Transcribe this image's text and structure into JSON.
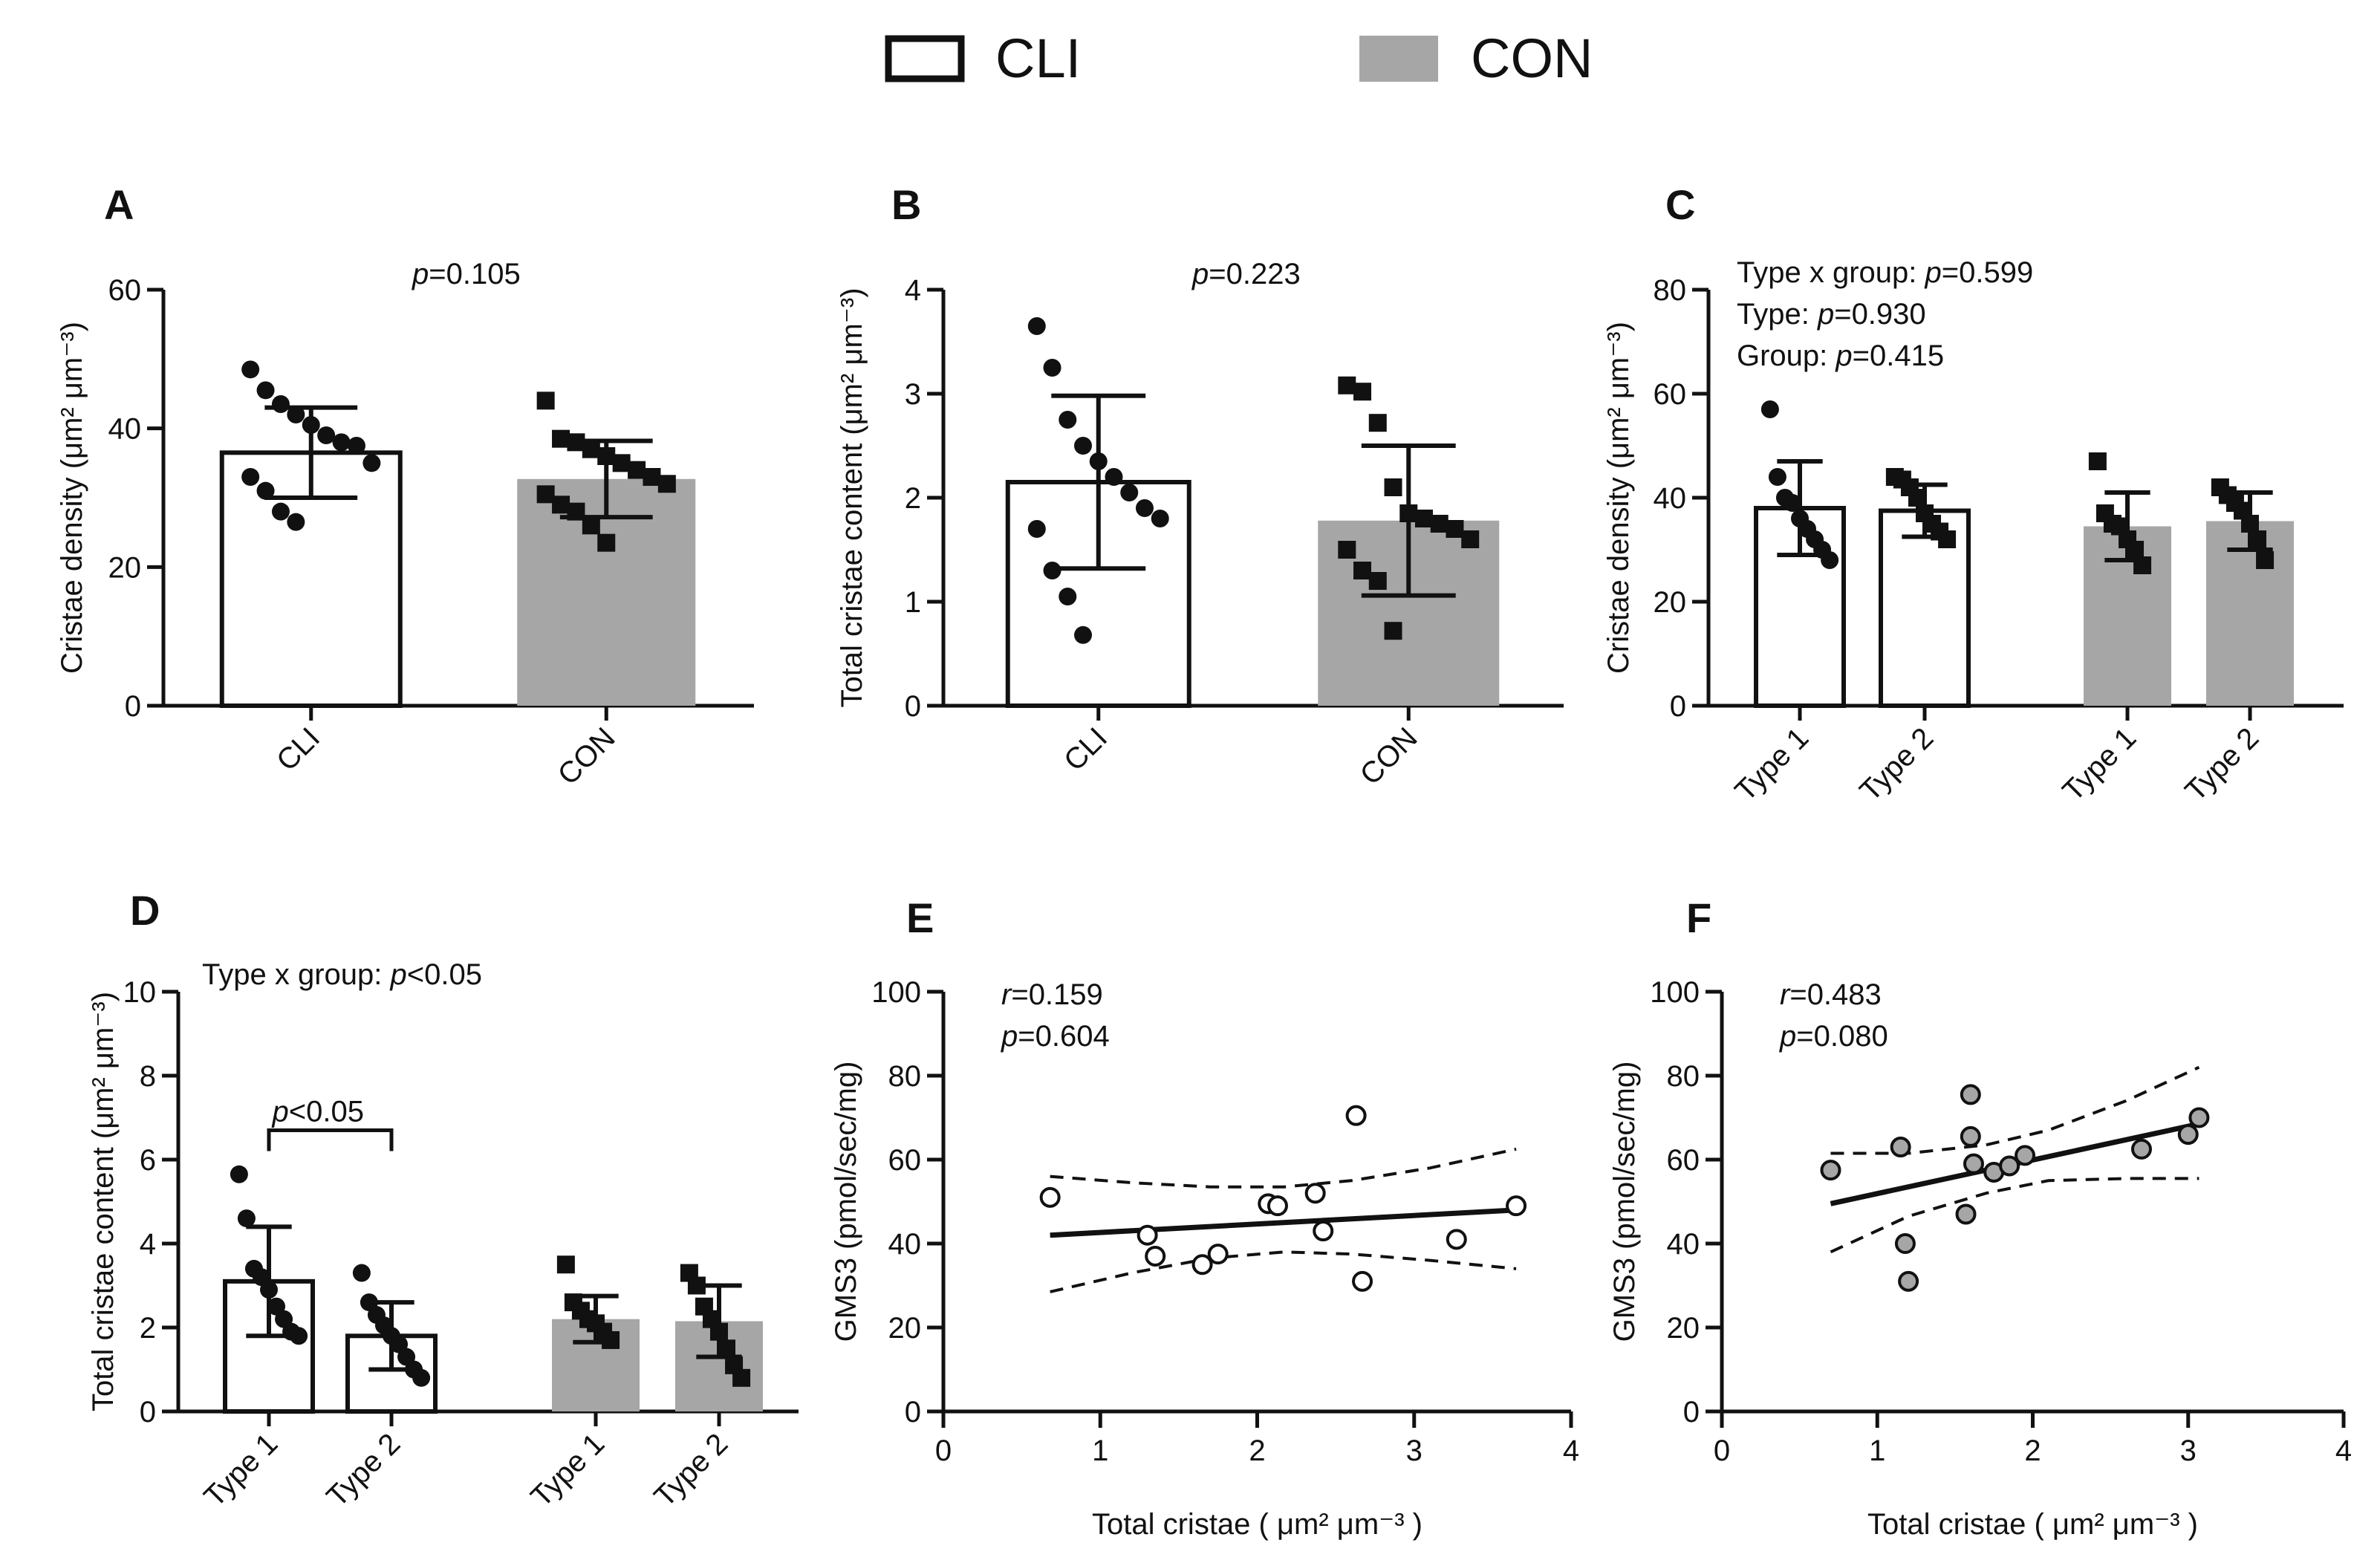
{
  "legend": {
    "items": [
      {
        "label": "CLI",
        "fill": "#ffffff"
      },
      {
        "label": "CON",
        "fill": "#a6a6a6"
      }
    ]
  },
  "colors": {
    "cli": "#ffffff",
    "con": "#a6a6a6",
    "ink": "#111111"
  },
  "chart_data": [
    {
      "id": "A",
      "title": "A",
      "type": "bar",
      "ylabel": "Cristae density (μm² μm⁻³)",
      "ylim": [
        0,
        60
      ],
      "yticks": [
        "0",
        "20",
        "40",
        "60"
      ],
      "annotation": [
        "p=0.105"
      ],
      "categories": [
        "CLI",
        "CON"
      ],
      "bars": [
        {
          "group": "CLI",
          "mean": 36.5,
          "sd": 6.5,
          "marker": "circle",
          "points": [
            48.5,
            45.5,
            43.5,
            42,
            40.5,
            39,
            38,
            37.5,
            35,
            33,
            31,
            28,
            26.5
          ]
        },
        {
          "group": "CON",
          "mean": 32.7,
          "sd": 5.5,
          "marker": "square",
          "points": [
            44,
            38.5,
            38,
            37,
            36,
            35,
            34,
            33,
            32,
            30.5,
            29,
            28,
            26,
            23.5
          ]
        }
      ]
    },
    {
      "id": "B",
      "title": "B",
      "type": "bar",
      "ylabel": "Total cristae content (μm² μm⁻³)",
      "ylim": [
        0,
        4
      ],
      "yticks": [
        "0",
        "1",
        "2",
        "3",
        "4"
      ],
      "annotation": [
        "p=0.223"
      ],
      "categories": [
        "CLI",
        "CON"
      ],
      "bars": [
        {
          "group": "CLI",
          "mean": 2.15,
          "sd": 0.83,
          "marker": "circle",
          "points": [
            3.65,
            3.25,
            2.75,
            2.5,
            2.35,
            2.2,
            2.05,
            1.9,
            1.8,
            1.7,
            1.3,
            1.05,
            0.68
          ]
        },
        {
          "group": "CON",
          "mean": 1.78,
          "sd": 0.72,
          "marker": "square",
          "points": [
            3.08,
            3.02,
            2.72,
            2.1,
            1.85,
            1.8,
            1.75,
            1.7,
            1.6,
            1.5,
            1.3,
            1.2,
            0.72
          ]
        }
      ]
    },
    {
      "id": "C",
      "title": "C",
      "type": "bar",
      "ylabel": "Cristae density (μm² μm⁻³)",
      "ylim": [
        0,
        80
      ],
      "yticks": [
        "0",
        "20",
        "40",
        "60",
        "80"
      ],
      "annotation": [
        "Type x group: p=0.599",
        "Type: p=0.930",
        "Group: p=0.415"
      ],
      "categories": [
        "Type 1",
        "Type 2",
        "Type 1",
        "Type 2"
      ],
      "bars": [
        {
          "group": "CLI",
          "mean": 38,
          "sd": 9,
          "marker": "circle",
          "points": [
            57,
            44,
            40,
            39,
            36,
            34,
            32,
            30,
            28
          ]
        },
        {
          "group": "CLI",
          "mean": 37.5,
          "sd": 5,
          "marker": "square",
          "points": [
            44,
            43.5,
            42,
            40,
            37,
            35,
            33.5,
            32
          ]
        },
        {
          "group": "CON",
          "mean": 34.5,
          "sd": 6.5,
          "marker": "square",
          "points": [
            47,
            37,
            35,
            34.5,
            32,
            30,
            27
          ]
        },
        {
          "group": "CON",
          "mean": 35.5,
          "sd": 5.5,
          "marker": "square",
          "points": [
            42,
            40.5,
            39,
            37.5,
            35,
            32,
            28
          ]
        }
      ]
    },
    {
      "id": "D",
      "title": "D",
      "type": "bar",
      "ylabel": "Total cristae content (μm² μm⁻³)",
      "ylim": [
        0,
        10
      ],
      "yticks": [
        "0",
        "2",
        "4",
        "6",
        "8",
        "10"
      ],
      "annotation": [
        "Type x group: p<0.05"
      ],
      "bracket": {
        "label": "p<0.05",
        "y": 6.7,
        "between": [
          0,
          1
        ]
      },
      "categories": [
        "Type 1",
        "Type 2",
        "Type 1",
        "Type 2"
      ],
      "bars": [
        {
          "group": "CLI",
          "mean": 3.1,
          "sd": 1.3,
          "marker": "circle",
          "points": [
            5.65,
            4.6,
            3.4,
            3.2,
            2.9,
            2.5,
            2.2,
            1.9,
            1.8
          ]
        },
        {
          "group": "CLI",
          "mean": 1.8,
          "sd": 0.8,
          "marker": "circle",
          "points": [
            3.3,
            2.6,
            2.3,
            2.05,
            1.8,
            1.6,
            1.3,
            1.0,
            0.8
          ]
        },
        {
          "group": "CON",
          "mean": 2.2,
          "sd": 0.55,
          "marker": "square",
          "points": [
            3.5,
            2.6,
            2.4,
            2.2,
            2.1,
            1.9,
            1.7
          ]
        },
        {
          "group": "CON",
          "mean": 2.15,
          "sd": 0.85,
          "marker": "square",
          "points": [
            3.3,
            3.0,
            2.5,
            2.2,
            1.9,
            1.5,
            1.1,
            0.8
          ]
        }
      ]
    },
    {
      "id": "E",
      "title": "E",
      "type": "scatter",
      "xlabel": "Total cristae ( μm² μm⁻³ )",
      "ylabel": "GMS3  (pmol/sec/mg)",
      "xlim": [
        0,
        4
      ],
      "ylim": [
        0,
        100
      ],
      "xticks": [
        "0",
        "1",
        "2",
        "3",
        "4"
      ],
      "yticks": [
        "0",
        "20",
        "40",
        "60",
        "80",
        "100"
      ],
      "annotation": [
        "r=0.159",
        "p=0.604"
      ],
      "marker_fill": "#ffffff",
      "points": [
        [
          0.68,
          51
        ],
        [
          1.3,
          42
        ],
        [
          1.35,
          37
        ],
        [
          1.65,
          35
        ],
        [
          1.75,
          37.5
        ],
        [
          2.07,
          49.5
        ],
        [
          2.13,
          49
        ],
        [
          2.37,
          52
        ],
        [
          2.42,
          43
        ],
        [
          2.63,
          70.5
        ],
        [
          2.67,
          31
        ],
        [
          3.27,
          41
        ],
        [
          3.65,
          49
        ]
      ],
      "fit": {
        "x": [
          0.68,
          3.65
        ],
        "y": [
          42,
          48
        ]
      },
      "ci_upper": {
        "x": [
          0.68,
          1.2,
          1.7,
          2.17,
          2.6,
          3.1,
          3.65
        ],
        "y": [
          56,
          54.5,
          53.5,
          53.5,
          55,
          58,
          62.5
        ]
      },
      "ci_lower": {
        "x": [
          0.68,
          1.2,
          1.7,
          2.17,
          2.6,
          3.1,
          3.65
        ],
        "y": [
          28.5,
          33,
          36.5,
          38,
          37.5,
          36,
          34
        ]
      }
    },
    {
      "id": "F",
      "title": "F",
      "type": "scatter",
      "xlabel": "Total cristae ( μm² μm⁻³ )",
      "ylabel": "GMS3  (pmol/sec/mg)",
      "xlim": [
        0,
        4
      ],
      "ylim": [
        0,
        100
      ],
      "xticks": [
        "0",
        "1",
        "2",
        "3",
        "4"
      ],
      "yticks": [
        "0",
        "20",
        "40",
        "60",
        "80",
        "100"
      ],
      "annotation": [
        "r=0.483",
        "p=0.080"
      ],
      "marker_fill": "#a6a6a6",
      "points": [
        [
          0.7,
          57.5
        ],
        [
          1.15,
          63
        ],
        [
          1.18,
          40
        ],
        [
          1.2,
          31
        ],
        [
          1.57,
          47
        ],
        [
          1.6,
          75.5
        ],
        [
          1.6,
          65.5
        ],
        [
          1.62,
          59
        ],
        [
          1.75,
          57
        ],
        [
          1.85,
          58.5
        ],
        [
          1.95,
          61
        ],
        [
          2.7,
          62.5
        ],
        [
          3.0,
          66
        ],
        [
          3.07,
          70
        ]
      ],
      "fit": {
        "x": [
          0.7,
          3.07
        ],
        "y": [
          49.5,
          68.5
        ]
      },
      "ci_upper": {
        "x": [
          0.7,
          1.2,
          1.7,
          2.1,
          2.6,
          3.07
        ],
        "y": [
          61.5,
          61.5,
          63.5,
          67,
          74,
          82
        ]
      },
      "ci_lower": {
        "x": [
          0.7,
          1.2,
          1.7,
          2.1,
          2.6,
          3.07
        ],
        "y": [
          38,
          46.5,
          52,
          55,
          55.5,
          55.5
        ]
      }
    }
  ]
}
